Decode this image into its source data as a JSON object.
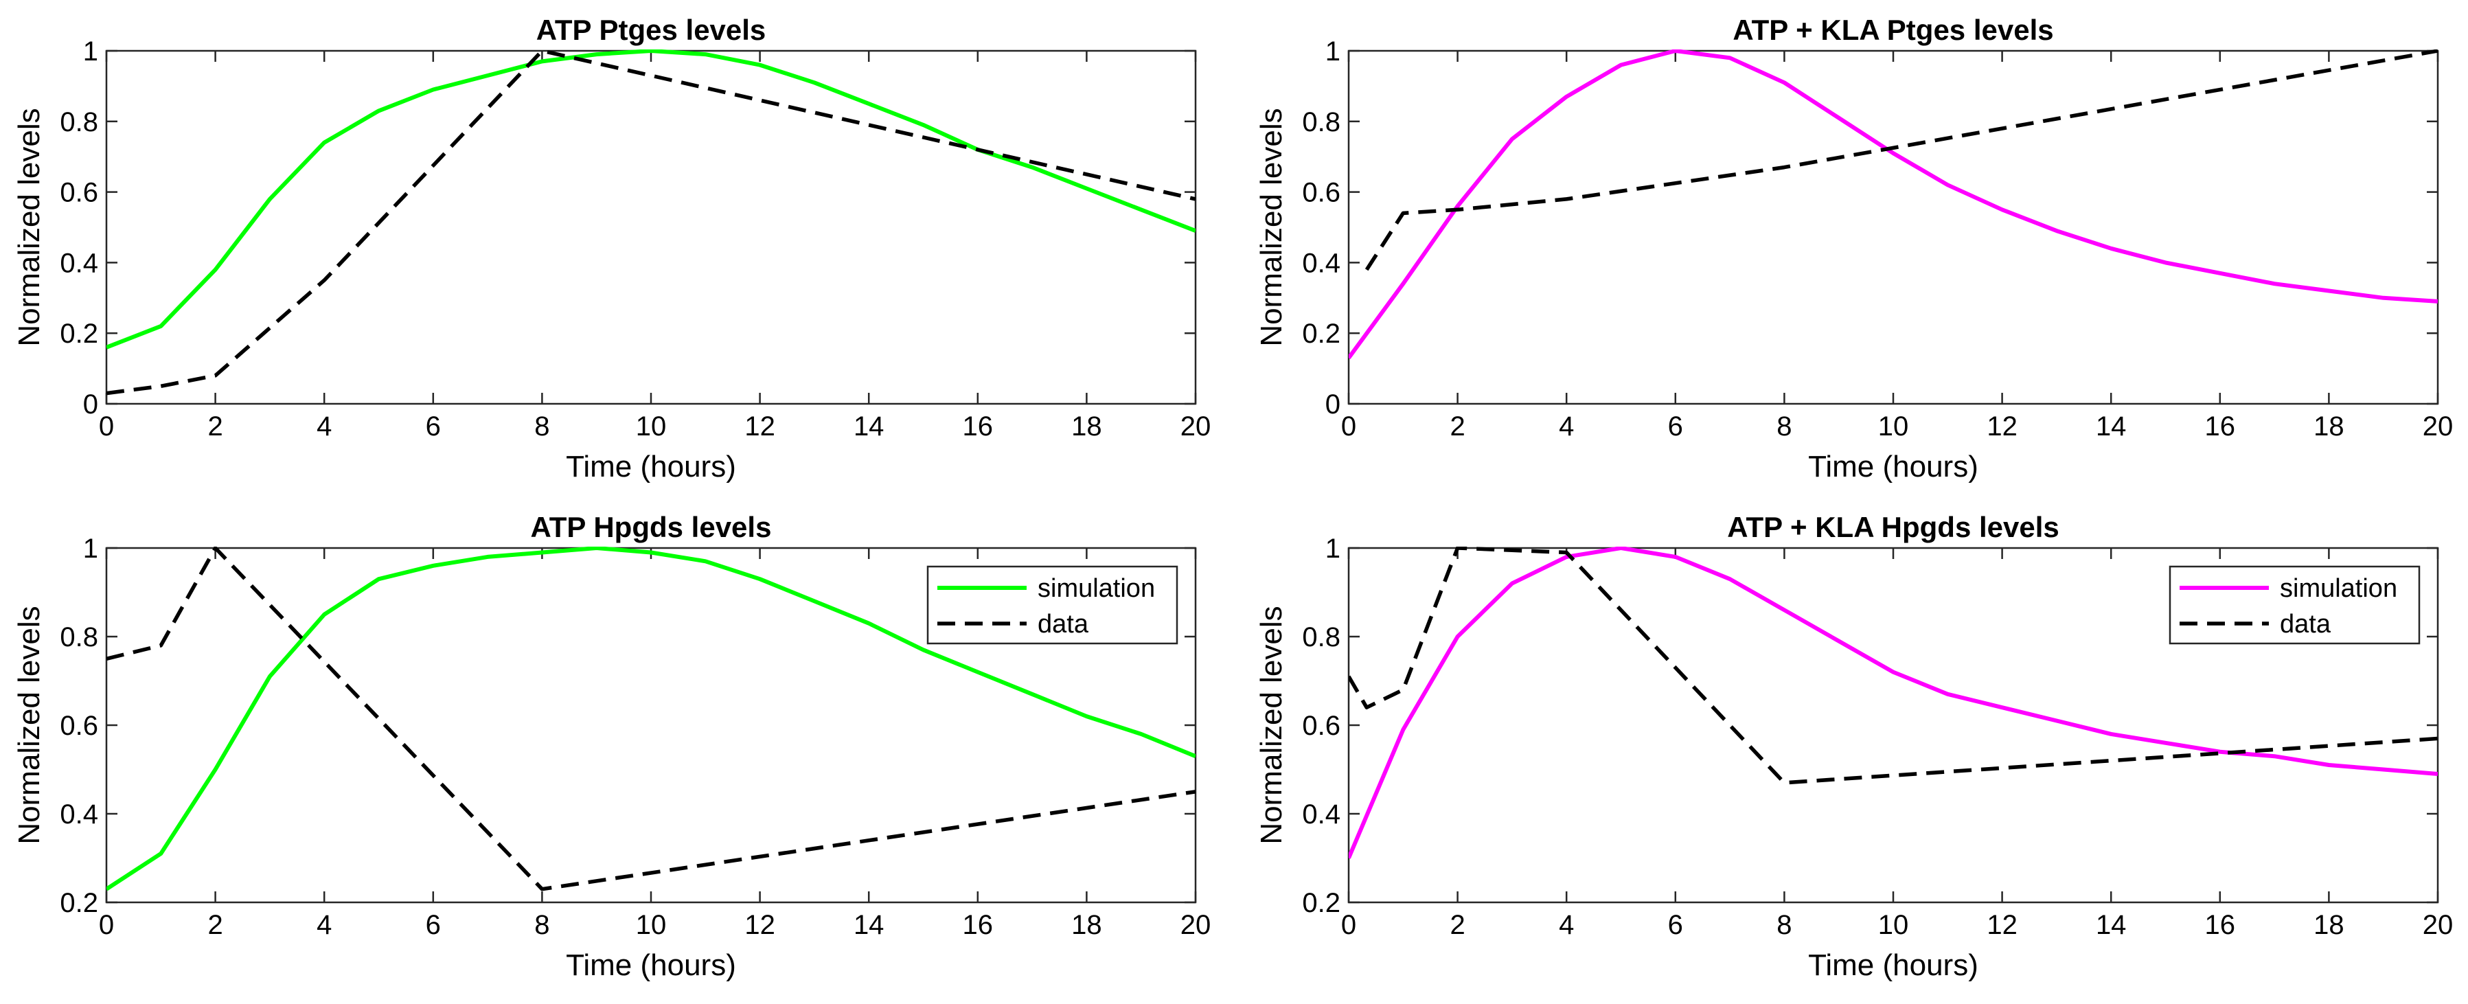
{
  "chart_data": [
    {
      "type": "line",
      "title": "ATP Ptges levels",
      "xlabel": "Time (hours)",
      "ylabel": "Normalized levels",
      "xlim": [
        0,
        20
      ],
      "ylim": [
        0,
        1
      ],
      "xticks": [
        0,
        2,
        4,
        6,
        8,
        10,
        12,
        14,
        16,
        18,
        20
      ],
      "yticks": [
        0,
        0.2,
        0.4,
        0.6,
        0.8,
        1
      ],
      "xtick_labels": [
        "0",
        "2",
        "4",
        "6",
        "8",
        "10",
        "12",
        "14",
        "16",
        "18",
        "20"
      ],
      "ytick_labels": [
        "0",
        "0.2",
        "0.4",
        "0.6",
        "0.8",
        "1"
      ],
      "legend": null,
      "series": [
        {
          "name": "simulation",
          "color": "#00ff00",
          "style": "solid",
          "x": [
            0,
            1,
            2,
            3,
            4,
            5,
            6,
            7,
            8,
            9,
            10,
            11,
            12,
            13,
            14,
            15,
            16,
            17,
            18,
            19,
            20
          ],
          "y": [
            0.16,
            0.22,
            0.38,
            0.58,
            0.74,
            0.83,
            0.89,
            0.93,
            0.97,
            0.99,
            1.0,
            0.99,
            0.96,
            0.91,
            0.85,
            0.79,
            0.72,
            0.67,
            0.61,
            0.55,
            0.49
          ]
        },
        {
          "name": "data",
          "color": "#000000",
          "style": "dashed",
          "x": [
            0,
            1,
            2,
            4,
            8,
            20
          ],
          "y": [
            0.03,
            0.05,
            0.08,
            0.35,
            1.0,
            0.58
          ]
        }
      ]
    },
    {
      "type": "line",
      "title": "ATP + KLA Ptges levels",
      "xlabel": "Time (hours)",
      "ylabel": "Normalized levels",
      "xlim": [
        0,
        20
      ],
      "ylim": [
        0,
        1
      ],
      "xticks": [
        0,
        2,
        4,
        6,
        8,
        10,
        12,
        14,
        16,
        18,
        20
      ],
      "yticks": [
        0,
        0.2,
        0.4,
        0.6,
        0.8,
        1
      ],
      "xtick_labels": [
        "0",
        "2",
        "4",
        "6",
        "8",
        "10",
        "12",
        "14",
        "16",
        "18",
        "20"
      ],
      "ytick_labels": [
        "0",
        "0.2",
        "0.4",
        "0.6",
        "0.8",
        "1"
      ],
      "legend": null,
      "series": [
        {
          "name": "simulation",
          "color": "#ff00ff",
          "style": "solid",
          "x": [
            0,
            1,
            2,
            3,
            4,
            5,
            6,
            7,
            8,
            9,
            10,
            11,
            12,
            13,
            14,
            15,
            16,
            17,
            18,
            19,
            20
          ],
          "y": [
            0.13,
            0.34,
            0.56,
            0.75,
            0.87,
            0.96,
            1.0,
            0.98,
            0.91,
            0.81,
            0.71,
            0.62,
            0.55,
            0.49,
            0.44,
            0.4,
            0.37,
            0.34,
            0.32,
            0.3,
            0.29
          ]
        },
        {
          "name": "data",
          "color": "#000000",
          "style": "dashed",
          "x": [
            0.33,
            1,
            2,
            4,
            8,
            20
          ],
          "y": [
            0.38,
            0.54,
            0.55,
            0.58,
            0.67,
            1.0
          ]
        }
      ]
    },
    {
      "type": "line",
      "title": "ATP Hpgds levels",
      "xlabel": "Time (hours)",
      "ylabel": "Normalized levels",
      "xlim": [
        0,
        20
      ],
      "ylim": [
        0.2,
        1
      ],
      "xticks": [
        0,
        2,
        4,
        6,
        8,
        10,
        12,
        14,
        16,
        18,
        20
      ],
      "yticks": [
        0.2,
        0.4,
        0.6,
        0.8,
        1
      ],
      "xtick_labels": [
        "0",
        "2",
        "4",
        "6",
        "8",
        "10",
        "12",
        "14",
        "16",
        "18",
        "20"
      ],
      "ytick_labels": [
        "0.2",
        "0.4",
        "0.6",
        "0.8",
        "1"
      ],
      "legend": "top-right",
      "series": [
        {
          "name": "simulation",
          "color": "#00ff00",
          "style": "solid",
          "x": [
            0,
            1,
            2,
            3,
            4,
            5,
            6,
            7,
            8,
            9,
            10,
            11,
            12,
            13,
            14,
            15,
            16,
            17,
            18,
            19,
            20
          ],
          "y": [
            0.23,
            0.31,
            0.5,
            0.71,
            0.85,
            0.93,
            0.96,
            0.98,
            0.99,
            1.0,
            0.99,
            0.97,
            0.93,
            0.88,
            0.83,
            0.77,
            0.72,
            0.67,
            0.62,
            0.58,
            0.53
          ]
        },
        {
          "name": "data",
          "color": "#000000",
          "style": "dashed",
          "x": [
            0,
            1,
            2,
            8,
            20
          ],
          "y": [
            0.75,
            0.78,
            1.0,
            0.23,
            0.45
          ]
        }
      ]
    },
    {
      "type": "line",
      "title": "ATP + KLA Hpgds levels",
      "xlabel": "Time (hours)",
      "ylabel": "Normalized levels",
      "xlim": [
        0,
        20
      ],
      "ylim": [
        0.2,
        1
      ],
      "xticks": [
        0,
        2,
        4,
        6,
        8,
        10,
        12,
        14,
        16,
        18,
        20
      ],
      "yticks": [
        0.2,
        0.4,
        0.6,
        0.8,
        1
      ],
      "xtick_labels": [
        "0",
        "2",
        "4",
        "6",
        "8",
        "10",
        "12",
        "14",
        "16",
        "18",
        "20"
      ],
      "ytick_labels": [
        "0.2",
        "0.4",
        "0.6",
        "0.8",
        "1"
      ],
      "legend": "top-right",
      "series": [
        {
          "name": "simulation",
          "color": "#ff00ff",
          "style": "solid",
          "x": [
            0,
            1,
            2,
            3,
            4,
            5,
            6,
            7,
            8,
            9,
            10,
            11,
            12,
            13,
            14,
            15,
            16,
            17,
            18,
            19,
            20
          ],
          "y": [
            0.3,
            0.59,
            0.8,
            0.92,
            0.98,
            1.0,
            0.98,
            0.93,
            0.86,
            0.79,
            0.72,
            0.67,
            0.64,
            0.61,
            0.58,
            0.56,
            0.54,
            0.53,
            0.51,
            0.5,
            0.49
          ]
        },
        {
          "name": "data",
          "color": "#000000",
          "style": "dashed",
          "x": [
            0,
            0.33,
            1,
            2,
            4,
            8,
            20
          ],
          "y": [
            0.71,
            0.64,
            0.68,
            1.0,
            0.99,
            0.47,
            0.57
          ]
        }
      ]
    }
  ]
}
